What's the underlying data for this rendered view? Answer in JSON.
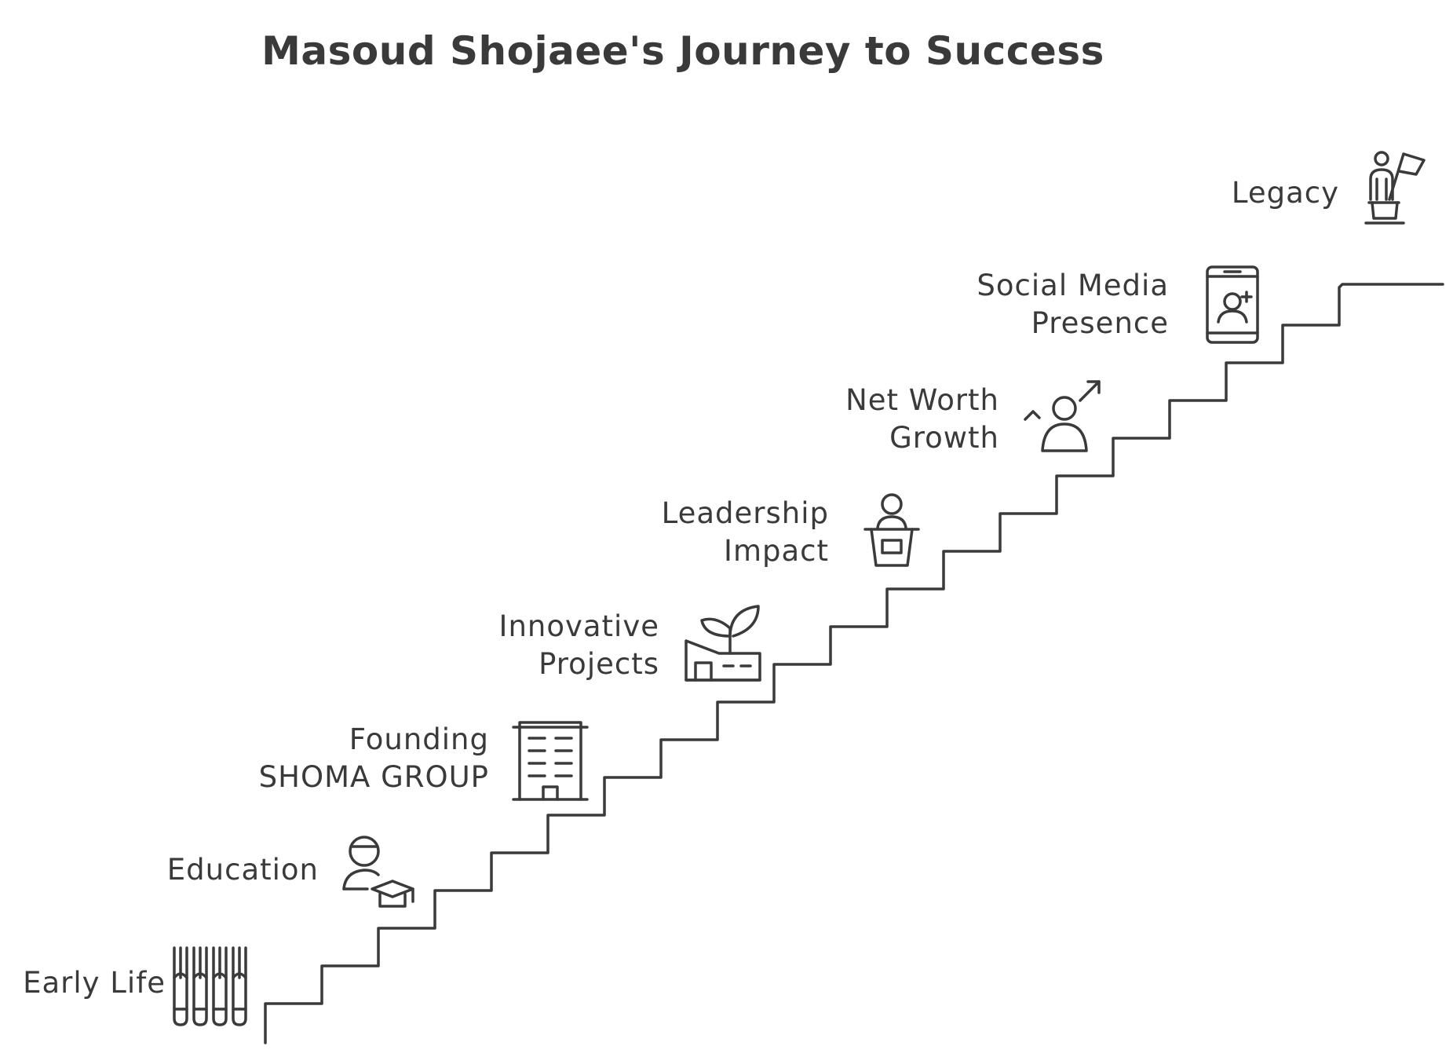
{
  "title": "Masoud Shojaee's Journey to Success",
  "steps": [
    {
      "lines": [
        "Early Life"
      ],
      "icon": "test-tubes-icon"
    },
    {
      "lines": [
        "Education"
      ],
      "icon": "graduate-icon"
    },
    {
      "lines": [
        "Founding",
        "SHOMA GROUP"
      ],
      "icon": "office-building-icon"
    },
    {
      "lines": [
        "Innovative",
        "Projects"
      ],
      "icon": "factory-sprout-icon"
    },
    {
      "lines": [
        "Leadership",
        "Impact"
      ],
      "icon": "speaker-podium-icon"
    },
    {
      "lines": [
        "Net Worth",
        "Growth"
      ],
      "icon": "person-growth-icon"
    },
    {
      "lines": [
        "Social Media",
        "Presence"
      ],
      "icon": "phone-add-user-icon"
    },
    {
      "lines": [
        "Legacy"
      ],
      "icon": "person-flag-pedestal-icon"
    }
  ]
}
